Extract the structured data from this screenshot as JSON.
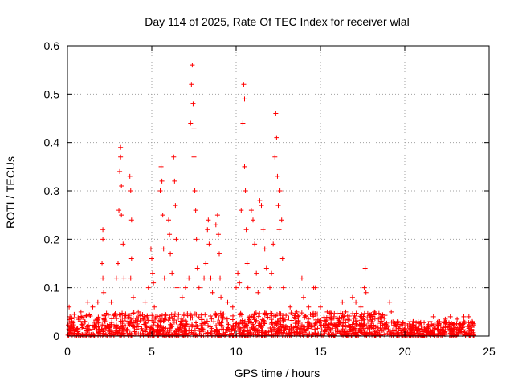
{
  "chart_data": {
    "type": "scatter",
    "title": "Day 114 of 2025, Rate Of TEC Index for receiver wlal",
    "xlabel": "GPS time / hours",
    "ylabel": "ROTI / TECUs",
    "xlim": [
      0,
      25
    ],
    "ylim": [
      0,
      0.6
    ],
    "xticks": [
      0,
      5,
      10,
      15,
      20,
      25
    ],
    "yticks": [
      0,
      0.1,
      0.2,
      0.3,
      0.4,
      0.5,
      0.6
    ],
    "grid": true,
    "marker": "plus",
    "color": "#ff0000",
    "baseline_band": [
      0,
      0.03
    ],
    "series": [
      {
        "name": "ROTI",
        "points": [
          [
            0.1,
            0.06
          ],
          [
            0.15,
            0.04
          ],
          [
            0.4,
            0.045
          ],
          [
            0.8,
            0.05
          ],
          [
            1.2,
            0.07
          ],
          [
            1.5,
            0.06
          ],
          [
            1.8,
            0.07
          ],
          [
            2.1,
            0.22
          ],
          [
            2.1,
            0.2
          ],
          [
            2.05,
            0.15
          ],
          [
            2.1,
            0.12
          ],
          [
            2.15,
            0.09
          ],
          [
            2.6,
            0.07
          ],
          [
            2.9,
            0.12
          ],
          [
            3.0,
            0.15
          ],
          [
            3.05,
            0.26
          ],
          [
            3.1,
            0.34
          ],
          [
            3.15,
            0.39
          ],
          [
            3.15,
            0.37
          ],
          [
            3.2,
            0.31
          ],
          [
            3.2,
            0.25
          ],
          [
            3.3,
            0.19
          ],
          [
            3.35,
            0.12
          ],
          [
            3.7,
            0.33
          ],
          [
            3.75,
            0.3
          ],
          [
            3.8,
            0.24
          ],
          [
            3.8,
            0.16
          ],
          [
            3.75,
            0.12
          ],
          [
            3.9,
            0.08
          ],
          [
            4.2,
            0.05
          ],
          [
            4.6,
            0.07
          ],
          [
            4.8,
            0.1
          ],
          [
            4.95,
            0.18
          ],
          [
            5.0,
            0.16
          ],
          [
            5.05,
            0.13
          ],
          [
            5.1,
            0.11
          ],
          [
            5.15,
            0.06
          ],
          [
            5.5,
            0.3
          ],
          [
            5.55,
            0.35
          ],
          [
            5.6,
            0.32
          ],
          [
            5.65,
            0.25
          ],
          [
            5.7,
            0.18
          ],
          [
            5.75,
            0.12
          ],
          [
            6.0,
            0.24
          ],
          [
            6.05,
            0.21
          ],
          [
            6.1,
            0.17
          ],
          [
            6.2,
            0.13
          ],
          [
            6.3,
            0.37
          ],
          [
            6.35,
            0.32
          ],
          [
            6.4,
            0.27
          ],
          [
            6.45,
            0.2
          ],
          [
            6.5,
            0.1
          ],
          [
            6.8,
            0.08
          ],
          [
            7.0,
            0.1
          ],
          [
            7.2,
            0.12
          ],
          [
            7.3,
            0.44
          ],
          [
            7.35,
            0.52
          ],
          [
            7.4,
            0.56
          ],
          [
            7.45,
            0.48
          ],
          [
            7.5,
            0.43
          ],
          [
            7.5,
            0.37
          ],
          [
            7.55,
            0.3
          ],
          [
            7.6,
            0.26
          ],
          [
            7.65,
            0.2
          ],
          [
            7.7,
            0.14
          ],
          [
            7.8,
            0.1
          ],
          [
            8.1,
            0.12
          ],
          [
            8.2,
            0.15
          ],
          [
            8.3,
            0.22
          ],
          [
            8.35,
            0.24
          ],
          [
            8.4,
            0.19
          ],
          [
            8.5,
            0.12
          ],
          [
            8.6,
            0.09
          ],
          [
            8.8,
            0.23
          ],
          [
            8.9,
            0.25
          ],
          [
            8.95,
            0.21
          ],
          [
            9.0,
            0.17
          ],
          [
            9.05,
            0.12
          ],
          [
            9.1,
            0.08
          ],
          [
            9.5,
            0.07
          ],
          [
            9.8,
            0.06
          ],
          [
            10.0,
            0.1
          ],
          [
            10.1,
            0.13
          ],
          [
            10.2,
            0.11
          ],
          [
            10.3,
            0.26
          ],
          [
            10.4,
            0.44
          ],
          [
            10.45,
            0.52
          ],
          [
            10.5,
            0.49
          ],
          [
            10.5,
            0.35
          ],
          [
            10.55,
            0.3
          ],
          [
            10.6,
            0.22
          ],
          [
            10.65,
            0.15
          ],
          [
            10.7,
            0.1
          ],
          [
            10.9,
            0.26
          ],
          [
            11.0,
            0.24
          ],
          [
            11.1,
            0.19
          ],
          [
            11.2,
            0.13
          ],
          [
            11.3,
            0.09
          ],
          [
            11.4,
            0.28
          ],
          [
            11.5,
            0.27
          ],
          [
            11.6,
            0.22
          ],
          [
            11.7,
            0.18
          ],
          [
            11.8,
            0.14
          ],
          [
            12.0,
            0.1
          ],
          [
            12.1,
            0.13
          ],
          [
            12.2,
            0.19
          ],
          [
            12.3,
            0.37
          ],
          [
            12.35,
            0.46
          ],
          [
            12.4,
            0.41
          ],
          [
            12.45,
            0.33
          ],
          [
            12.5,
            0.27
          ],
          [
            12.55,
            0.22
          ],
          [
            12.6,
            0.3
          ],
          [
            12.7,
            0.24
          ],
          [
            12.75,
            0.16
          ],
          [
            12.8,
            0.1
          ],
          [
            13.2,
            0.06
          ],
          [
            13.6,
            0.05
          ],
          [
            13.9,
            0.12
          ],
          [
            14.0,
            0.08
          ],
          [
            14.3,
            0.06
          ],
          [
            14.6,
            0.1
          ],
          [
            14.7,
            0.1
          ],
          [
            15.0,
            0.06
          ],
          [
            15.4,
            0.05
          ],
          [
            15.8,
            0.04
          ],
          [
            16.3,
            0.07
          ],
          [
            16.5,
            0.05
          ],
          [
            16.9,
            0.08
          ],
          [
            17.1,
            0.07
          ],
          [
            17.4,
            0.06
          ],
          [
            17.6,
            0.1
          ],
          [
            17.65,
            0.14
          ],
          [
            17.7,
            0.09
          ],
          [
            18.2,
            0.05
          ],
          [
            18.6,
            0.04
          ],
          [
            19.1,
            0.07
          ],
          [
            19.2,
            0.05
          ],
          [
            19.6,
            0.03
          ],
          [
            20.0,
            0.025
          ],
          [
            20.5,
            0.03
          ],
          [
            21.0,
            0.02
          ],
          [
            21.5,
            0.03
          ],
          [
            21.7,
            0.04
          ],
          [
            22.0,
            0.03
          ],
          [
            22.4,
            0.035
          ],
          [
            22.7,
            0.04
          ],
          [
            23.1,
            0.035
          ],
          [
            23.5,
            0.04
          ],
          [
            23.8,
            0.04
          ],
          [
            24.0,
            0.03
          ]
        ]
      }
    ]
  }
}
